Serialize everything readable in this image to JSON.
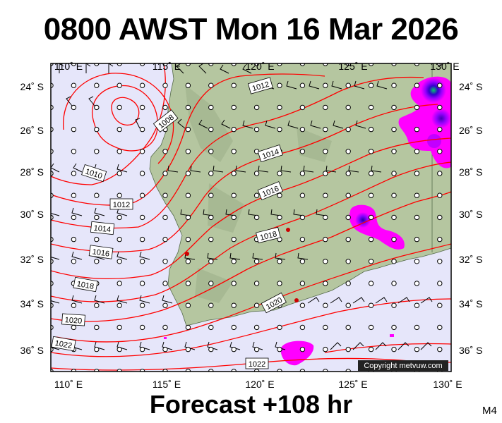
{
  "header": {
    "title": "0800 AWST Mon 16 Mar 2026"
  },
  "footer": {
    "forecast": "Forecast +108 hr",
    "model": "M4"
  },
  "copyright": "Copyright metvuw.com",
  "axes": {
    "lon_labels": [
      "110˚ E",
      "115˚ E",
      "120˚ E",
      "125˚ E",
      "130˚ E"
    ],
    "lat_labels": [
      "24˚ S",
      "26˚ S",
      "28˚ S",
      "30˚ S",
      "32˚ S",
      "34˚ S",
      "36˚ S"
    ]
  },
  "isobar_labels": [
    "1012",
    "1008",
    "1014",
    "1010",
    "1012",
    "1016",
    "1014",
    "1018",
    "1016",
    "1018",
    "1020",
    "1020",
    "1022",
    "1022"
  ],
  "colors": {
    "sea": "#e6e6fa",
    "land": "#b5c6a0",
    "isobar": "#ff0000",
    "rain": "#ff00ff",
    "rain_core": "#3300cc",
    "rain_peak": "#00cc66"
  }
}
